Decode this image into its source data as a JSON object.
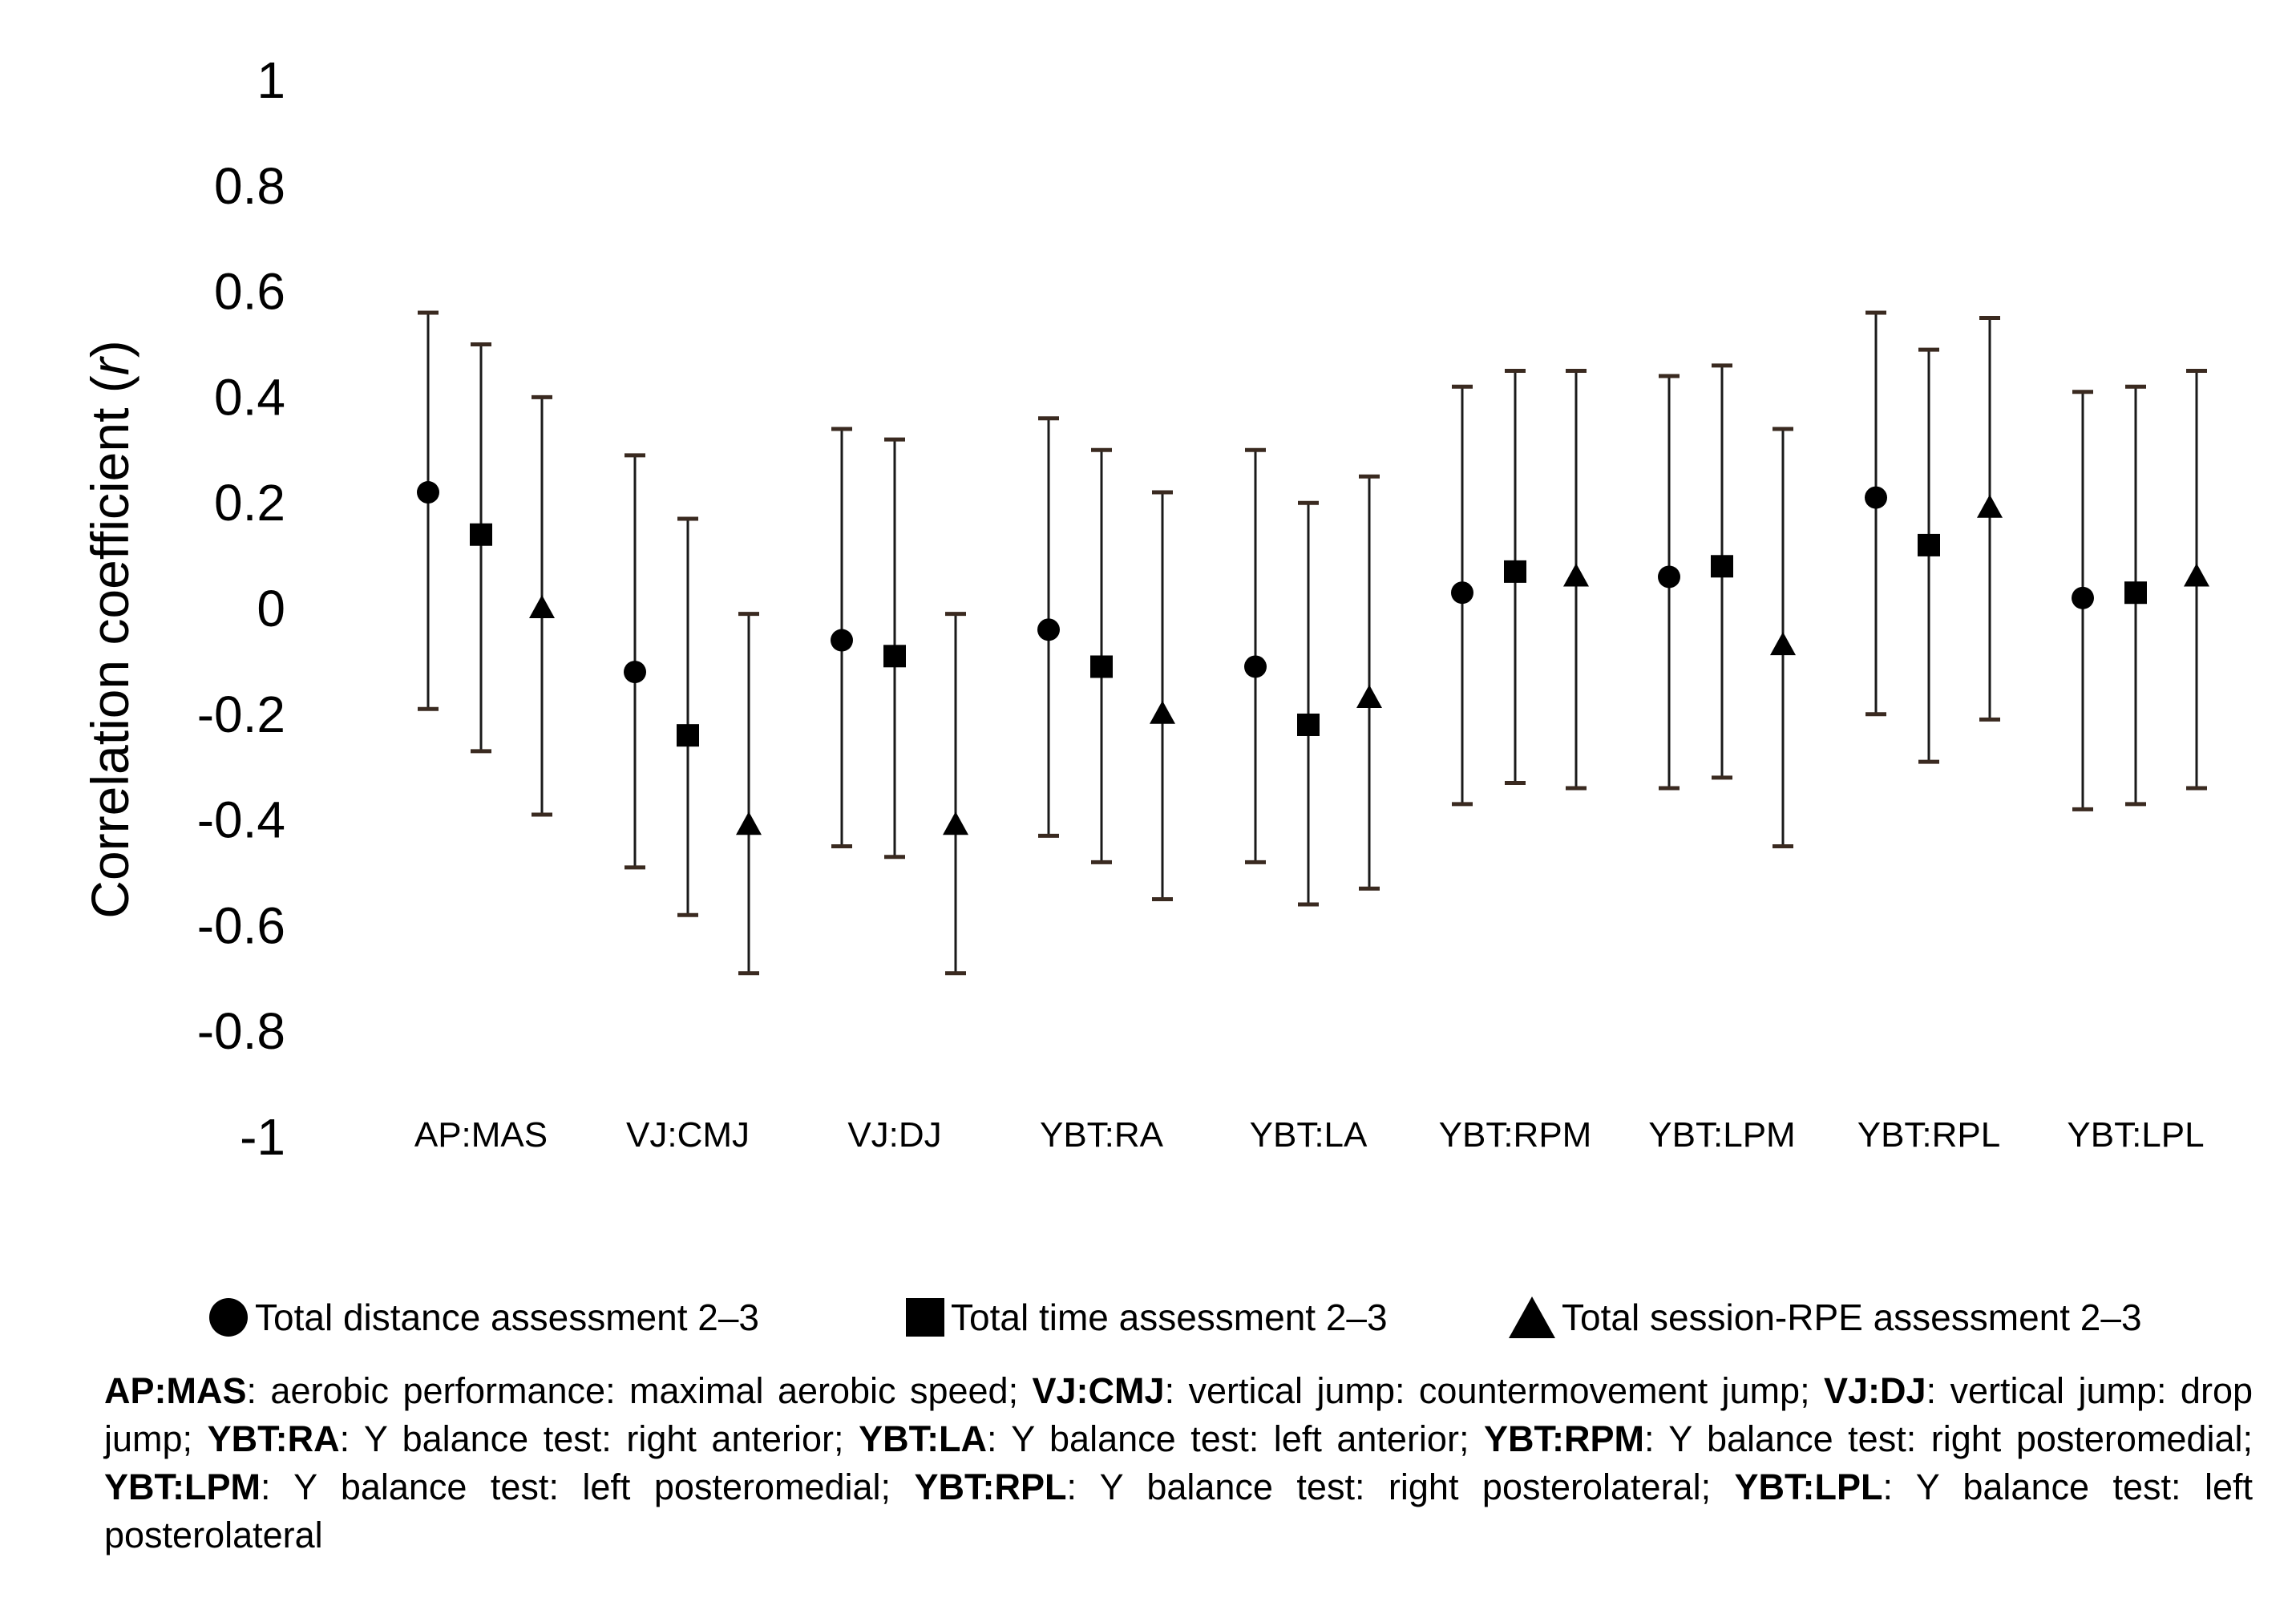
{
  "chart_data": {
    "type": "scatter",
    "variant": "error-bar",
    "ylabel": "Correlation coefficient (r)",
    "ylabel_main": "Correlation coefficient (",
    "ylabel_italic": "r",
    "ylabel_close": ")",
    "ylim": [
      -1,
      1
    ],
    "yticks": [
      1,
      0.8,
      0.6,
      0.4,
      0.2,
      0,
      -0.2,
      -0.4,
      -0.6,
      -0.8,
      -1
    ],
    "ytick_labels": [
      "1",
      "0.8",
      "0.6",
      "0.4",
      "0.2",
      "0",
      "-0.2",
      "-0.4",
      "-0.6",
      "-0.8",
      "-1"
    ],
    "grid": false,
    "legend_position": "bottom",
    "categories": [
      "AP:MAS",
      "VJ:CMJ",
      "VJ:DJ",
      "YBT:RA",
      "YBT:LA",
      "YBT:RPM",
      "YBT:LPM",
      "YBT:RPL",
      "YBT:LPL"
    ],
    "series": [
      {
        "name": "Total distance assessment 2–3",
        "marker": "circle",
        "values": [
          0.22,
          -0.12,
          -0.06,
          -0.04,
          -0.11,
          0.03,
          0.06,
          0.21,
          0.02
        ],
        "lower": [
          -0.19,
          -0.49,
          -0.45,
          -0.43,
          -0.48,
          -0.37,
          -0.34,
          -0.2,
          -0.38
        ],
        "upper": [
          0.56,
          0.29,
          0.34,
          0.36,
          0.3,
          0.42,
          0.44,
          0.56,
          0.41
        ]
      },
      {
        "name": "Total time assessment 2–3",
        "marker": "square",
        "values": [
          0.14,
          -0.24,
          -0.09,
          -0.11,
          -0.22,
          0.07,
          0.08,
          0.12,
          0.03
        ],
        "lower": [
          -0.27,
          -0.58,
          -0.47,
          -0.48,
          -0.56,
          -0.33,
          -0.32,
          -0.29,
          -0.37
        ],
        "upper": [
          0.5,
          0.17,
          0.32,
          0.3,
          0.2,
          0.45,
          0.46,
          0.49,
          0.42
        ]
      },
      {
        "name": "Total session-RPE assessment 2–3",
        "marker": "triangle",
        "values": [
          0.0,
          -0.41,
          -0.41,
          -0.2,
          -0.17,
          0.06,
          -0.07,
          0.19,
          0.06
        ],
        "lower": [
          -0.39,
          -0.69,
          -0.69,
          -0.55,
          -0.53,
          -0.34,
          -0.45,
          -0.21,
          -0.34
        ],
        "upper": [
          0.4,
          -0.01,
          -0.01,
          0.22,
          0.25,
          0.45,
          0.34,
          0.55,
          0.45
        ]
      }
    ]
  },
  "abbreviations": [
    {
      "abbr": "AP:MAS",
      "text": ": aerobic performance: maximal aerobic speed; "
    },
    {
      "abbr": "VJ:CMJ",
      "text": ": vertical jump: countermovement jump; "
    },
    {
      "abbr": "VJ:DJ",
      "text": ": vertical jump: drop jump; "
    },
    {
      "abbr": "YBT:RA",
      "text": ": Y balance test: right anterior; "
    },
    {
      "abbr": "YBT:LA",
      "text": ": Y balance test: left anterior; "
    },
    {
      "abbr": "YBT:RPM",
      "text": ": Y balance test: right posteromedial; "
    },
    {
      "abbr": "YBT:LPM",
      "text": ": Y balance test: left posteromedial; "
    },
    {
      "abbr": "YBT:RPL",
      "text": ": Y balance test: right posterolateral; "
    },
    {
      "abbr": "YBT:LPL",
      "text": ": Y balance test: left posterolateral"
    }
  ]
}
